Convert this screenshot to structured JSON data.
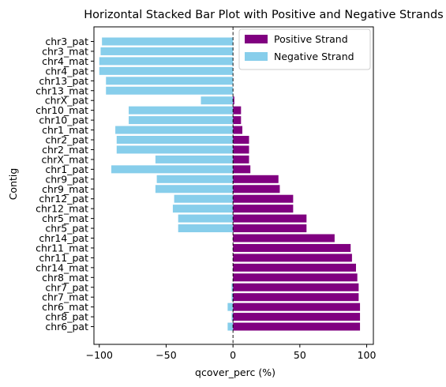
{
  "chart_data": {
    "type": "bar",
    "orientation": "horizontal",
    "stacked": true,
    "title": "Horizontal Stacked Bar Plot with Positive and Negative Strands",
    "xlabel": "qcover_perc (%)",
    "ylabel": "Contig",
    "xlim": [
      -104,
      105
    ],
    "xticks": [
      -100,
      -50,
      0,
      50,
      100
    ],
    "grid": false,
    "legend_position": "top-right",
    "zero_line": true,
    "categories": [
      "chr3_pat",
      "chr3_mat",
      "chr4_mat",
      "chr4_pat",
      "chr13_pat",
      "chr13_mat",
      "chrX_pat",
      "chr10_mat",
      "chr10_pat",
      "chr1_mat",
      "chr2_pat",
      "chr2_mat",
      "chrX_mat",
      "chr1_pat",
      "chr9_pat",
      "chr9_mat",
      "chr12_pat",
      "chr12_mat",
      "chr5_mat",
      "chr5_pat",
      "chr14_pat",
      "chr11_mat",
      "chr11_pat",
      "chr14_mat",
      "chr8_mat",
      "chr7_pat",
      "chr7_mat",
      "chr6_mat",
      "chr8_pat",
      "chr6_pat"
    ],
    "series": [
      {
        "name": "Positive Strand",
        "color": "#800080",
        "values": [
          0,
          0,
          0,
          0,
          0,
          0,
          1,
          6,
          6,
          7,
          12,
          12,
          12,
          13,
          34,
          35,
          45,
          45,
          55,
          55,
          76,
          88,
          89,
          92,
          93,
          94,
          94,
          95,
          95,
          95
        ]
      },
      {
        "name": "Negative Strand",
        "color": "#87CEEB",
        "values": [
          -98,
          -99,
          -100,
          -100,
          -95,
          -95,
          -24,
          -78,
          -78,
          -88,
          -87,
          -87,
          -58,
          -91,
          -57,
          -58,
          -44,
          -45,
          -41,
          -41,
          0,
          0,
          0,
          0,
          0,
          -1,
          -1,
          -4,
          -1,
          -4
        ]
      }
    ]
  }
}
